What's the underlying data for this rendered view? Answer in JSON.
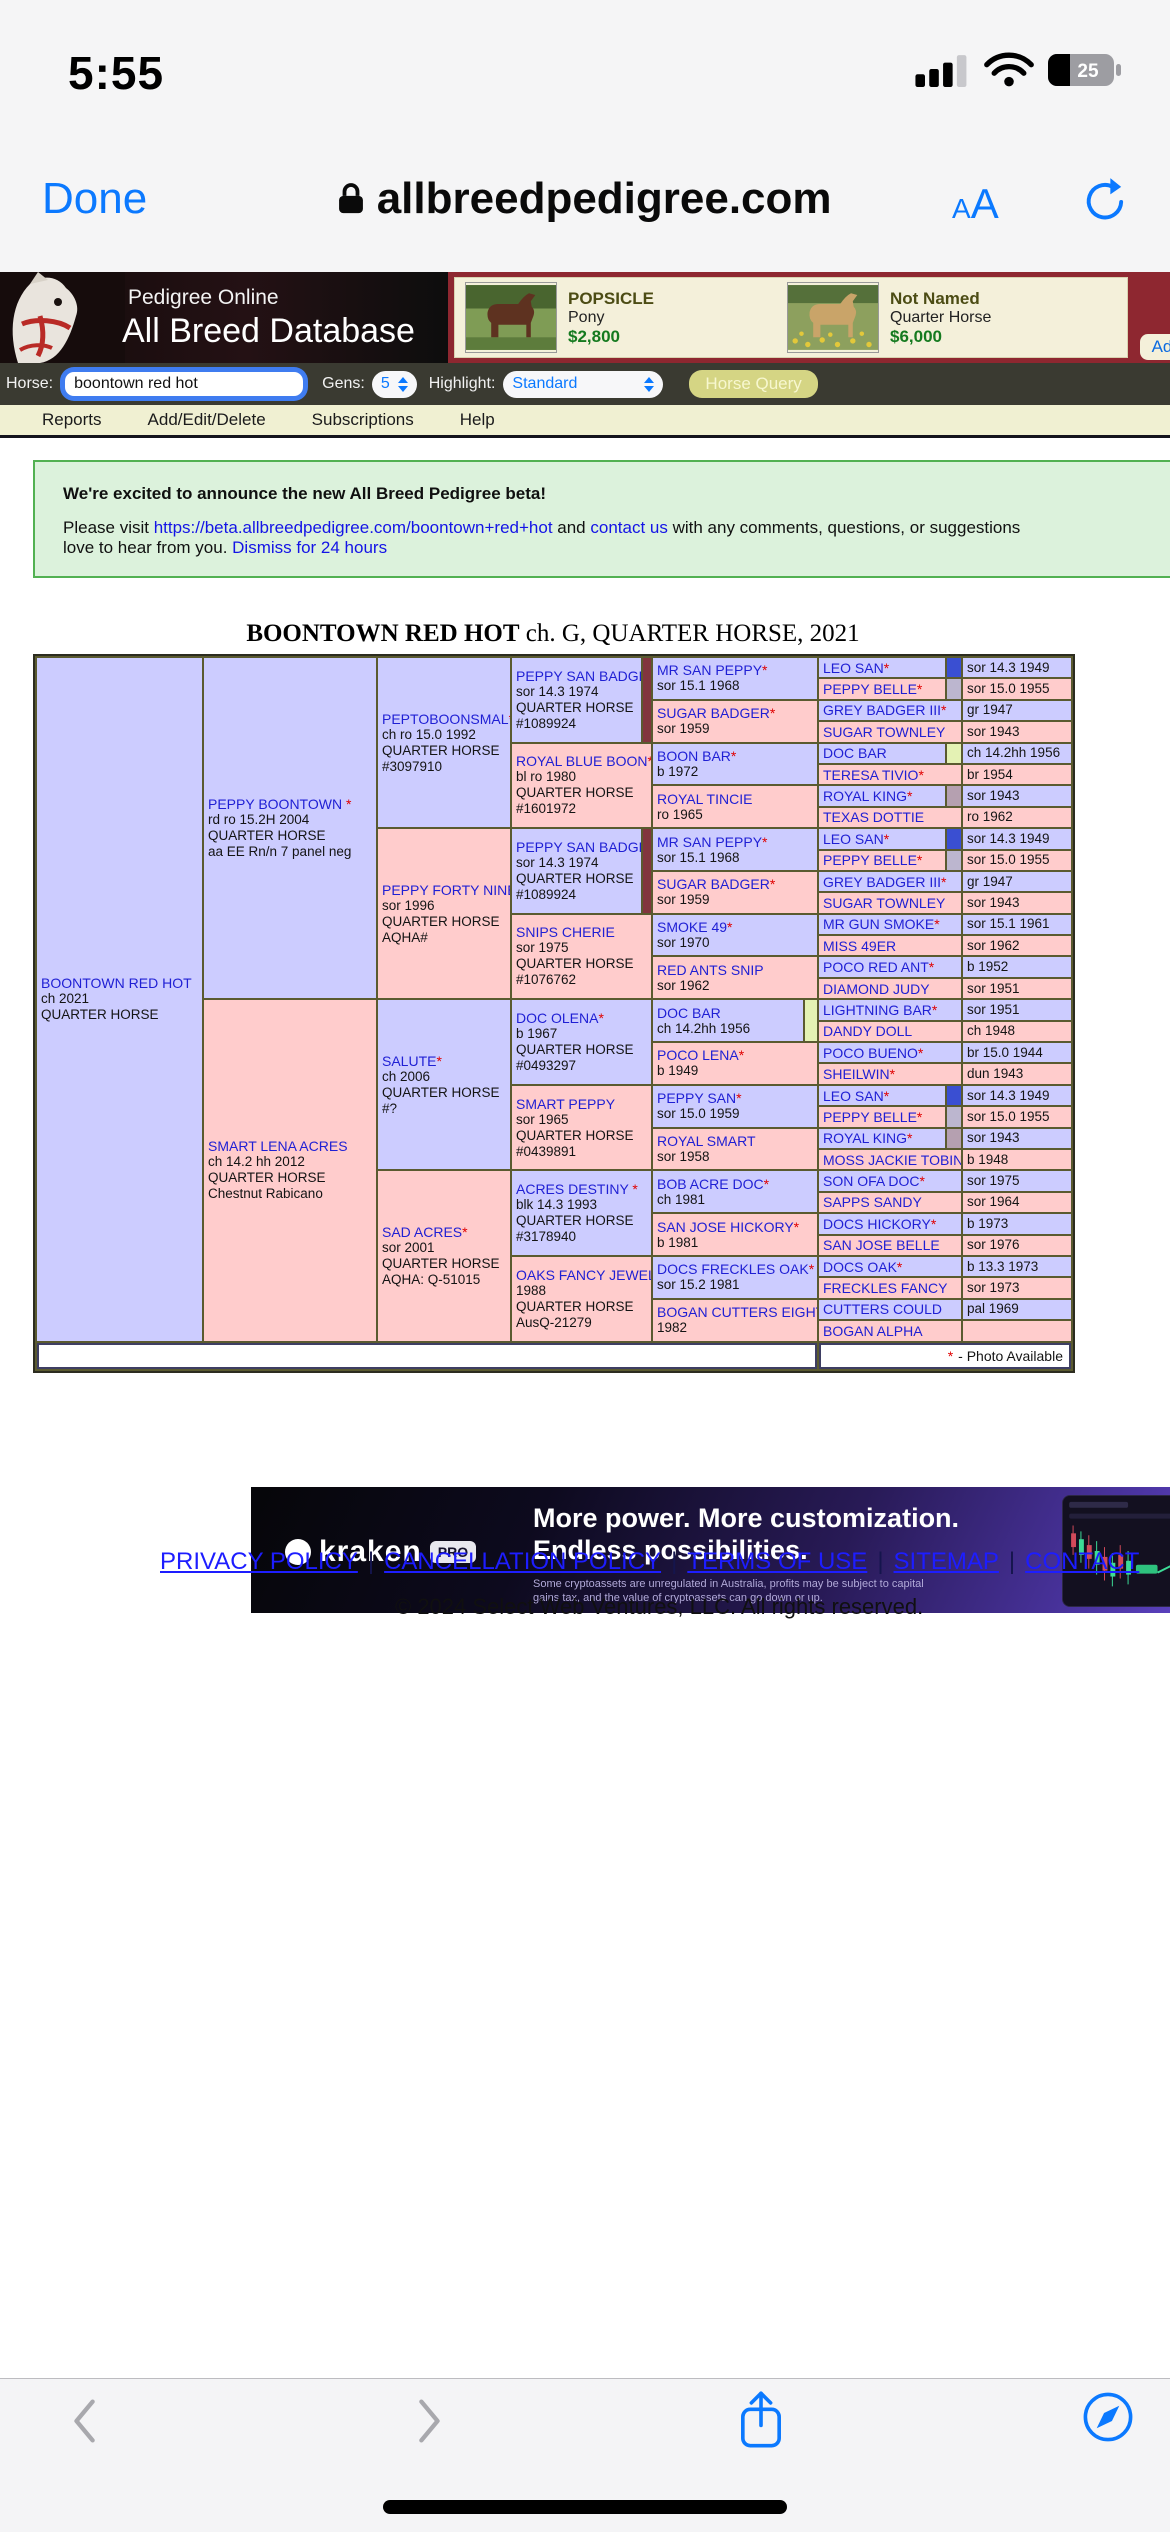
{
  "status_bar": {
    "time": "5:55",
    "battery_percent": "25"
  },
  "browser": {
    "done_label": "Done",
    "url": "allbreedpedigree.com",
    "text_size_label_small": "A",
    "text_size_label_large": "A"
  },
  "banner": {
    "site_line1": "Pedigree Online",
    "site_line2": "All Breed Database",
    "ad_chip_label": "Ad",
    "listings": [
      {
        "name": "POPSICLE",
        "breed": "Pony",
        "price": "$2,800"
      },
      {
        "name": "Not Named",
        "breed": "Quarter Horse",
        "price": "$6,000"
      }
    ]
  },
  "search_bar": {
    "horse_label": "Horse:",
    "horse_value": "boontown red hot",
    "gens_label": "Gens:",
    "gens_value": "5",
    "highlight_label": "Highlight:",
    "highlight_value": "Standard",
    "query_button": "Horse Query"
  },
  "menu": {
    "items": [
      "Reports",
      "Add/Edit/Delete",
      "Subscriptions",
      "Help"
    ]
  },
  "announcement": {
    "heading": "We're excited to announce the new All Breed Pedigree beta!",
    "line1_pre": "Please visit ",
    "line1_link1": "https://beta.allbreedpedigree.com/boontown+red+hot",
    "line1_mid": " and ",
    "line1_link2": "contact us",
    "line1_post": " with any comments, questions, or suggestions",
    "line2_text": "love to hear from you. ",
    "line2_link": "Dismiss for 24 hours"
  },
  "pedigree_title": {
    "name": "BOONTOWN RED HOT",
    "rest": " ch. G, QUARTER HORSE, 2021"
  },
  "pedigree": {
    "gen1": [
      {
        "name": "BOONTOWN RED HOT",
        "star": "",
        "sex": "s",
        "lines": [
          "ch 2021",
          "QUARTER HORSE"
        ],
        "swatch": null
      }
    ],
    "gen2": [
      {
        "name": "PEPPY BOONTOWN",
        "star": " *",
        "sex": "s",
        "lines": [
          "rd ro 15.2H 2004",
          "QUARTER HORSE",
          "aa EE Rn/n 7 panel neg"
        ],
        "swatch": null
      },
      {
        "name": "SMART LENA ACRES",
        "star": "",
        "sex": "d",
        "lines": [
          "ch 14.2 hh 2012",
          "QUARTER HORSE",
          "Chestnut Rabicano"
        ],
        "swatch": null
      }
    ],
    "gen3": [
      {
        "name": "PEPTOBOONSMAL",
        "star": "*",
        "sex": "s",
        "lines": [
          "ch ro 15.0 1992",
          "QUARTER HORSE",
          "#3097910"
        ],
        "swatch": null
      },
      {
        "name": "PEPPY FORTY NINE",
        "star": "",
        "sex": "d",
        "lines": [
          "sor 1996",
          "QUARTER HORSE",
          "AQHA#"
        ],
        "swatch": null
      },
      {
        "name": "SALUTE",
        "star": "*",
        "sex": "s",
        "lines": [
          "ch 2006",
          "QUARTER HORSE",
          "#?"
        ],
        "swatch": null
      },
      {
        "name": "SAD ACRES",
        "star": "*",
        "sex": "d",
        "lines": [
          "sor 2001",
          "QUARTER HORSE",
          "AQHA: Q-51015"
        ],
        "swatch": null
      }
    ],
    "gen4": [
      {
        "name": "PEPPY SAN BADGER",
        "star": "*",
        "sex": "s",
        "lines": [
          "sor 14.3 1974",
          "QUARTER HORSE",
          "#1089924"
        ],
        "swatch": "#82353e"
      },
      {
        "name": "ROYAL BLUE BOON",
        "star": "*",
        "sex": "d",
        "lines": [
          "bl ro 1980",
          "QUARTER HORSE",
          "#1601972"
        ],
        "swatch": null
      },
      {
        "name": "PEPPY SAN BADGER",
        "star": "*",
        "sex": "s",
        "lines": [
          "sor 14.3 1974",
          "QUARTER HORSE",
          "#1089924"
        ],
        "swatch": "#82353e"
      },
      {
        "name": "SNIPS CHERIE",
        "star": "",
        "sex": "d",
        "lines": [
          "sor 1975",
          "QUARTER HORSE",
          "#1076762"
        ],
        "swatch": null
      },
      {
        "name": "DOC OLENA",
        "star": "*",
        "sex": "s",
        "lines": [
          "b 1967",
          "QUARTER HORSE",
          "#0493297"
        ],
        "swatch": null
      },
      {
        "name": "SMART PEPPY",
        "star": "",
        "sex": "d",
        "lines": [
          "sor 1965",
          "QUARTER HORSE",
          "#0439891"
        ],
        "swatch": null
      },
      {
        "name": "ACRES DESTINY",
        "star": " *",
        "sex": "s",
        "lines": [
          "blk 14.3 1993",
          "QUARTER HORSE",
          "#3178940"
        ],
        "swatch": null
      },
      {
        "name": "OAKS FANCY JEWEL",
        "star": "",
        "sex": "d",
        "lines": [
          "1988",
          "QUARTER HORSE",
          "AusQ-21279"
        ],
        "swatch": null
      }
    ],
    "gen5": [
      {
        "name": "MR SAN PEPPY",
        "star": "*",
        "sex": "s",
        "lines": [
          "sor 15.1 1968"
        ],
        "swatch": null
      },
      {
        "name": "SUGAR BADGER",
        "star": "*",
        "sex": "d",
        "lines": [
          "sor 1959"
        ],
        "swatch": null
      },
      {
        "name": "BOON BAR",
        "star": "*",
        "sex": "s",
        "lines": [
          "b 1972"
        ],
        "swatch": null
      },
      {
        "name": "ROYAL TINCIE",
        "star": "",
        "sex": "d",
        "lines": [
          "ro 1965"
        ],
        "swatch": null
      },
      {
        "name": "MR SAN PEPPY",
        "star": "*",
        "sex": "s",
        "lines": [
          "sor 15.1 1968"
        ],
        "swatch": null
      },
      {
        "name": "SUGAR BADGER",
        "star": "*",
        "sex": "d",
        "lines": [
          "sor 1959"
        ],
        "swatch": null
      },
      {
        "name": "SMOKE 49",
        "star": "*",
        "sex": "s",
        "lines": [
          "sor 1970"
        ],
        "swatch": null
      },
      {
        "name": "RED ANTS SNIP",
        "star": "",
        "sex": "d",
        "lines": [
          "sor 1962"
        ],
        "swatch": null
      },
      {
        "name": "DOC BAR",
        "star": "",
        "sex": "s",
        "lines": [
          "ch 14.2hh 1956"
        ],
        "swatch": "#e4f2b4"
      },
      {
        "name": "POCO LENA",
        "star": "*",
        "sex": "d",
        "lines": [
          "b 1949"
        ],
        "swatch": null
      },
      {
        "name": "PEPPY SAN",
        "star": "*",
        "sex": "s",
        "lines": [
          "sor 15.0 1959"
        ],
        "swatch": null
      },
      {
        "name": "ROYAL SMART",
        "star": "",
        "sex": "d",
        "lines": [
          "sor 1958"
        ],
        "swatch": null
      },
      {
        "name": "BOB ACRE DOC",
        "star": "*",
        "sex": "s",
        "lines": [
          "ch 1981"
        ],
        "swatch": null
      },
      {
        "name": "SAN JOSE HICKORY",
        "star": "*",
        "sex": "d",
        "lines": [
          "b 1981"
        ],
        "swatch": null
      },
      {
        "name": "DOCS FRECKLES OAK",
        "star": "*",
        "sex": "s",
        "lines": [
          "sor 15.2 1981"
        ],
        "swatch": null
      },
      {
        "name": "BOGAN CUTTERS EIGHT",
        "star": "",
        "sex": "d",
        "lines": [
          "1982"
        ],
        "swatch": null
      }
    ],
    "gen6": [
      {
        "name": "LEO SAN",
        "star": "*",
        "sex": "s",
        "year": "sor 14.3 1949",
        "swatch": "#3a4fd2"
      },
      {
        "name": "PEPPY BELLE",
        "star": "*",
        "sex": "d",
        "year": "sor 15.0 1955",
        "swatch": "#bcb6cf"
      },
      {
        "name": "GREY BADGER III",
        "star": "*",
        "sex": "s",
        "year": "gr 1947",
        "swatch": null
      },
      {
        "name": "SUGAR TOWNLEY",
        "star": "",
        "sex": "d",
        "year": "sor 1943",
        "swatch": null
      },
      {
        "name": "DOC BAR",
        "star": "",
        "sex": "s",
        "year": "ch 14.2hh 1956",
        "swatch": "#e4f2b4"
      },
      {
        "name": "TERESA TIVIO",
        "star": "*",
        "sex": "d",
        "year": "br 1954",
        "swatch": null
      },
      {
        "name": "ROYAL KING",
        "star": "*",
        "sex": "s",
        "year": "sor 1943",
        "swatch": "#b5a0b0"
      },
      {
        "name": "TEXAS DOTTIE",
        "star": "",
        "sex": "d",
        "year": "ro 1962",
        "swatch": null
      },
      {
        "name": "LEO SAN",
        "star": "*",
        "sex": "s",
        "year": "sor 14.3 1949",
        "swatch": "#3a4fd2"
      },
      {
        "name": "PEPPY BELLE",
        "star": "*",
        "sex": "d",
        "year": "sor 15.0 1955",
        "swatch": "#bcb6cf"
      },
      {
        "name": "GREY BADGER III",
        "star": "*",
        "sex": "s",
        "year": "gr 1947",
        "swatch": null
      },
      {
        "name": "SUGAR TOWNLEY",
        "star": "",
        "sex": "d",
        "year": "sor 1943",
        "swatch": null
      },
      {
        "name": "MR GUN SMOKE",
        "star": "*",
        "sex": "s",
        "year": "sor 15.1 1961",
        "swatch": null
      },
      {
        "name": "MISS 49ER",
        "star": "",
        "sex": "d",
        "year": "sor 1962",
        "swatch": null
      },
      {
        "name": "POCO RED ANT",
        "star": "*",
        "sex": "s",
        "year": "b 1952",
        "swatch": null
      },
      {
        "name": "DIAMOND JUDY",
        "star": "",
        "sex": "d",
        "year": "sor 1951",
        "swatch": null
      },
      {
        "name": "LIGHTNING BAR",
        "star": "*",
        "sex": "s",
        "year": "sor 1951",
        "swatch": null
      },
      {
        "name": "DANDY DOLL",
        "star": "",
        "sex": "d",
        "year": "ch 1948",
        "swatch": null
      },
      {
        "name": "POCO BUENO",
        "star": "*",
        "sex": "s",
        "year": "br 15.0 1944",
        "swatch": null
      },
      {
        "name": "SHEILWIN",
        "star": "*",
        "sex": "d",
        "year": "dun 1943",
        "swatch": null
      },
      {
        "name": "LEO SAN",
        "star": "*",
        "sex": "s",
        "year": "sor 14.3 1949",
        "swatch": "#3a4fd2"
      },
      {
        "name": "PEPPY BELLE",
        "star": "*",
        "sex": "d",
        "year": "sor 15.0 1955",
        "swatch": "#bcb6cf"
      },
      {
        "name": "ROYAL KING",
        "star": "*",
        "sex": "s",
        "year": "sor 1943",
        "swatch": "#b5a0b0"
      },
      {
        "name": "MOSS JACKIE TOBIN",
        "star": "",
        "sex": "d",
        "year": "b 1948",
        "swatch": null
      },
      {
        "name": "SON OFA DOC",
        "star": "*",
        "sex": "s",
        "year": "sor 1975",
        "swatch": null
      },
      {
        "name": "SAPPS SANDY",
        "star": "",
        "sex": "d",
        "year": "sor 1964",
        "swatch": null
      },
      {
        "name": "DOCS HICKORY",
        "star": "*",
        "sex": "s",
        "year": "b 1973",
        "swatch": null
      },
      {
        "name": "SAN JOSE BELLE",
        "star": "",
        "sex": "d",
        "year": "sor 1976",
        "swatch": null
      },
      {
        "name": "DOCS OAK",
        "star": "*",
        "sex": "s",
        "year": "b 13.3 1973",
        "swatch": null
      },
      {
        "name": "FRECKLES FANCY",
        "star": "",
        "sex": "d",
        "year": "sor 1973",
        "swatch": null
      },
      {
        "name": "CUTTERS COULD",
        "star": "",
        "sex": "s",
        "year": "pal 1969",
        "swatch": null
      },
      {
        "name": "BOGAN ALPHA",
        "star": "",
        "sex": "d",
        "year": "",
        "swatch": null
      }
    ],
    "legend_star": "*",
    "legend_text": "- Photo Available"
  },
  "kraken_ad": {
    "brand": "kraken",
    "badge": "PRO",
    "headline1": "More power. More customization.",
    "headline2": "Endless possibilities.",
    "disclaimer1": "Some cryptoassets are unregulated in Australia, profits may be subject to capital",
    "disclaimer2": "gains tax, and the value of cryptoassets can go down or up."
  },
  "footer": {
    "links": [
      "PRIVACY POLICY",
      "CANCELLATION POLICY",
      "TERMS OF USE",
      "SITEMAP",
      "CONTACT"
    ],
    "separator": "|",
    "copyright": "© 2024 Select Web Ventures, LLC. All rights reserved."
  },
  "colors": {
    "accent_blue": "#0b79ff",
    "sire_cell": "#ccccff",
    "dam_cell": "#ffcccc",
    "table_border": "#5a5a30",
    "link_blue": "#1f1fd4",
    "star_red": "#e00000",
    "price_green": "#157a1f",
    "banner_red": "#8e2730",
    "searchbar_bg": "#3a3a31",
    "menu_bg": "#f0f0d2",
    "announce_bg": "#dcf2dc",
    "announce_border": "#52b152"
  }
}
